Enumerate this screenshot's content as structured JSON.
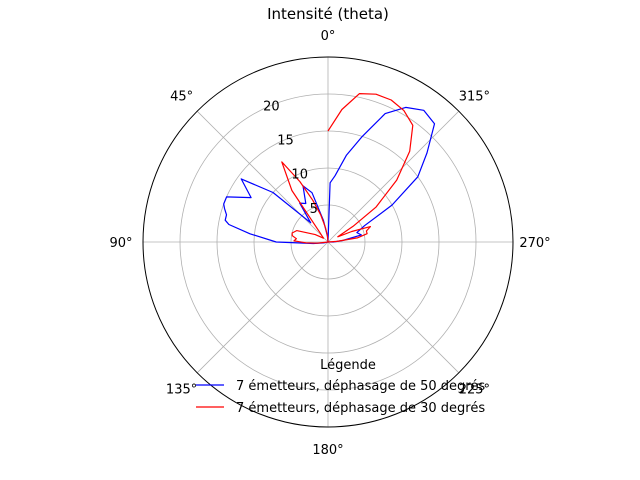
{
  "chart_data": {
    "type": "line",
    "projection": "polar",
    "title": "Intensité (theta)",
    "theta_zero_location": "top",
    "theta_direction": "counterclockwise",
    "theta_unit": "degrees",
    "r_range": [
      0,
      25
    ],
    "r_ticks": [
      5,
      10,
      15,
      20
    ],
    "r_tick_labels": [
      "5",
      "10",
      "15",
      "20"
    ],
    "theta_ticks": [
      0,
      45,
      90,
      135,
      180,
      225,
      270,
      315
    ],
    "theta_tick_labels": [
      "0°",
      "45°",
      "90°",
      "135°",
      "180°",
      "225°",
      "270°",
      "315°"
    ],
    "grid": true,
    "legend": {
      "title": "Légende",
      "placement": "lower center"
    },
    "series": [
      {
        "name": "7 émetteurs, déphasage de 50 degrés",
        "color": "#0000ff",
        "theta": [
          0,
          6,
          12,
          18,
          24,
          30,
          36,
          42,
          48,
          54,
          60,
          66,
          70,
          72,
          75,
          78,
          80,
          84,
          90,
          96,
          102,
          108,
          114,
          120,
          150,
          180,
          210,
          240,
          270,
          276,
          282,
          288,
          294,
          300,
          306,
          312,
          318,
          324,
          330,
          336,
          342,
          348,
          354,
          358,
          0
        ],
        "r": [
          0,
          0.8,
          3.0,
          7.0,
          8.3,
          6.0,
          6.5,
          3.5,
          10.0,
          14.5,
          12.0,
          15.0,
          15.0,
          14.7,
          14.2,
          14.2,
          13.6,
          10.6,
          7.0,
          2.0,
          0.6,
          0,
          0,
          0,
          0,
          0,
          0,
          0,
          0.7,
          2.0,
          4.6,
          4.1,
          5.4,
          10.0,
          15.0,
          18.0,
          21.5,
          22.0,
          21.0,
          19.0,
          15.0,
          12.0,
          9.0,
          8.0,
          0
        ]
      },
      {
        "name": "7 émetteurs, déphasage de 30 degrés",
        "color": "#ff0000",
        "theta": [
          0,
          5,
          10,
          15,
          20,
          25,
          30,
          35,
          40,
          50,
          60,
          70,
          76,
          80,
          84,
          88,
          92,
          96,
          100,
          120,
          150,
          180,
          210,
          240,
          270,
          274,
          278,
          282,
          286,
          290,
          294,
          298,
          302,
          306,
          312,
          318,
          324,
          330,
          336,
          342,
          348,
          354,
          0
        ],
        "r": [
          0,
          0.8,
          2.0,
          3.8,
          6.0,
          9.0,
          12.5,
          8.5,
          1.8,
          0.8,
          2.0,
          4.5,
          5.0,
          4.9,
          4.3,
          4.6,
          3.0,
          1.5,
          0,
          0,
          0,
          0,
          0,
          0,
          0,
          1.2,
          4.0,
          5.4,
          5.4,
          6.1,
          3.5,
          1.5,
          4.0,
          8.0,
          12.5,
          16.5,
          19.5,
          20.5,
          21.0,
          21.0,
          20.5,
          18.0,
          15.0
        ]
      }
    ]
  }
}
